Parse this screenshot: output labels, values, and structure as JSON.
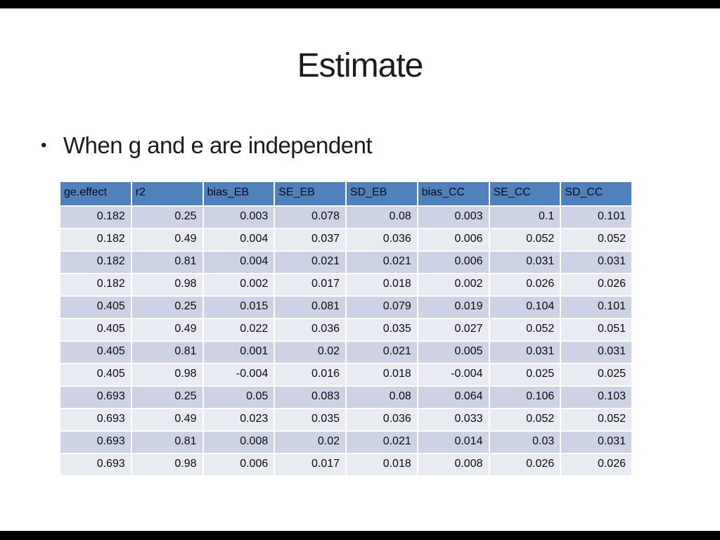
{
  "slide": {
    "title": "Estimate",
    "bullet_glyph": "•",
    "bullet_text": "When g and e are independent"
  },
  "colors": {
    "letterbox": "#000000",
    "header_bg": "#4F81BD",
    "row_dark": "#CDD3E5",
    "row_light": "#E9EBF3"
  },
  "table": {
    "columns": [
      "ge.effect",
      "r2",
      "bias_EB",
      "SE_EB",
      "SD_EB",
      "bias_CC",
      "SE_CC",
      "SD_CC"
    ],
    "rows": [
      [
        "0.182",
        "0.25",
        "0.003",
        "0.078",
        "0.08",
        "0.003",
        "0.1",
        "0.101"
      ],
      [
        "0.182",
        "0.49",
        "0.004",
        "0.037",
        "0.036",
        "0.006",
        "0.052",
        "0.052"
      ],
      [
        "0.182",
        "0.81",
        "0.004",
        "0.021",
        "0.021",
        "0.006",
        "0.031",
        "0.031"
      ],
      [
        "0.182",
        "0.98",
        "0.002",
        "0.017",
        "0.018",
        "0.002",
        "0.026",
        "0.026"
      ],
      [
        "0.405",
        "0.25",
        "0.015",
        "0.081",
        "0.079",
        "0.019",
        "0.104",
        "0.101"
      ],
      [
        "0.405",
        "0.49",
        "0.022",
        "0.036",
        "0.035",
        "0.027",
        "0.052",
        "0.051"
      ],
      [
        "0.405",
        "0.81",
        "0.001",
        "0.02",
        "0.021",
        "0.005",
        "0.031",
        "0.031"
      ],
      [
        "0.405",
        "0.98",
        "-0.004",
        "0.016",
        "0.018",
        "-0.004",
        "0.025",
        "0.025"
      ],
      [
        "0.693",
        "0.25",
        "0.05",
        "0.083",
        "0.08",
        "0.064",
        "0.106",
        "0.103"
      ],
      [
        "0.693",
        "0.49",
        "0.023",
        "0.035",
        "0.036",
        "0.033",
        "0.052",
        "0.052"
      ],
      [
        "0.693",
        "0.81",
        "0.008",
        "0.02",
        "0.021",
        "0.014",
        "0.03",
        "0.031"
      ],
      [
        "0.693",
        "0.98",
        "0.006",
        "0.017",
        "0.018",
        "0.008",
        "0.026",
        "0.026"
      ]
    ]
  }
}
